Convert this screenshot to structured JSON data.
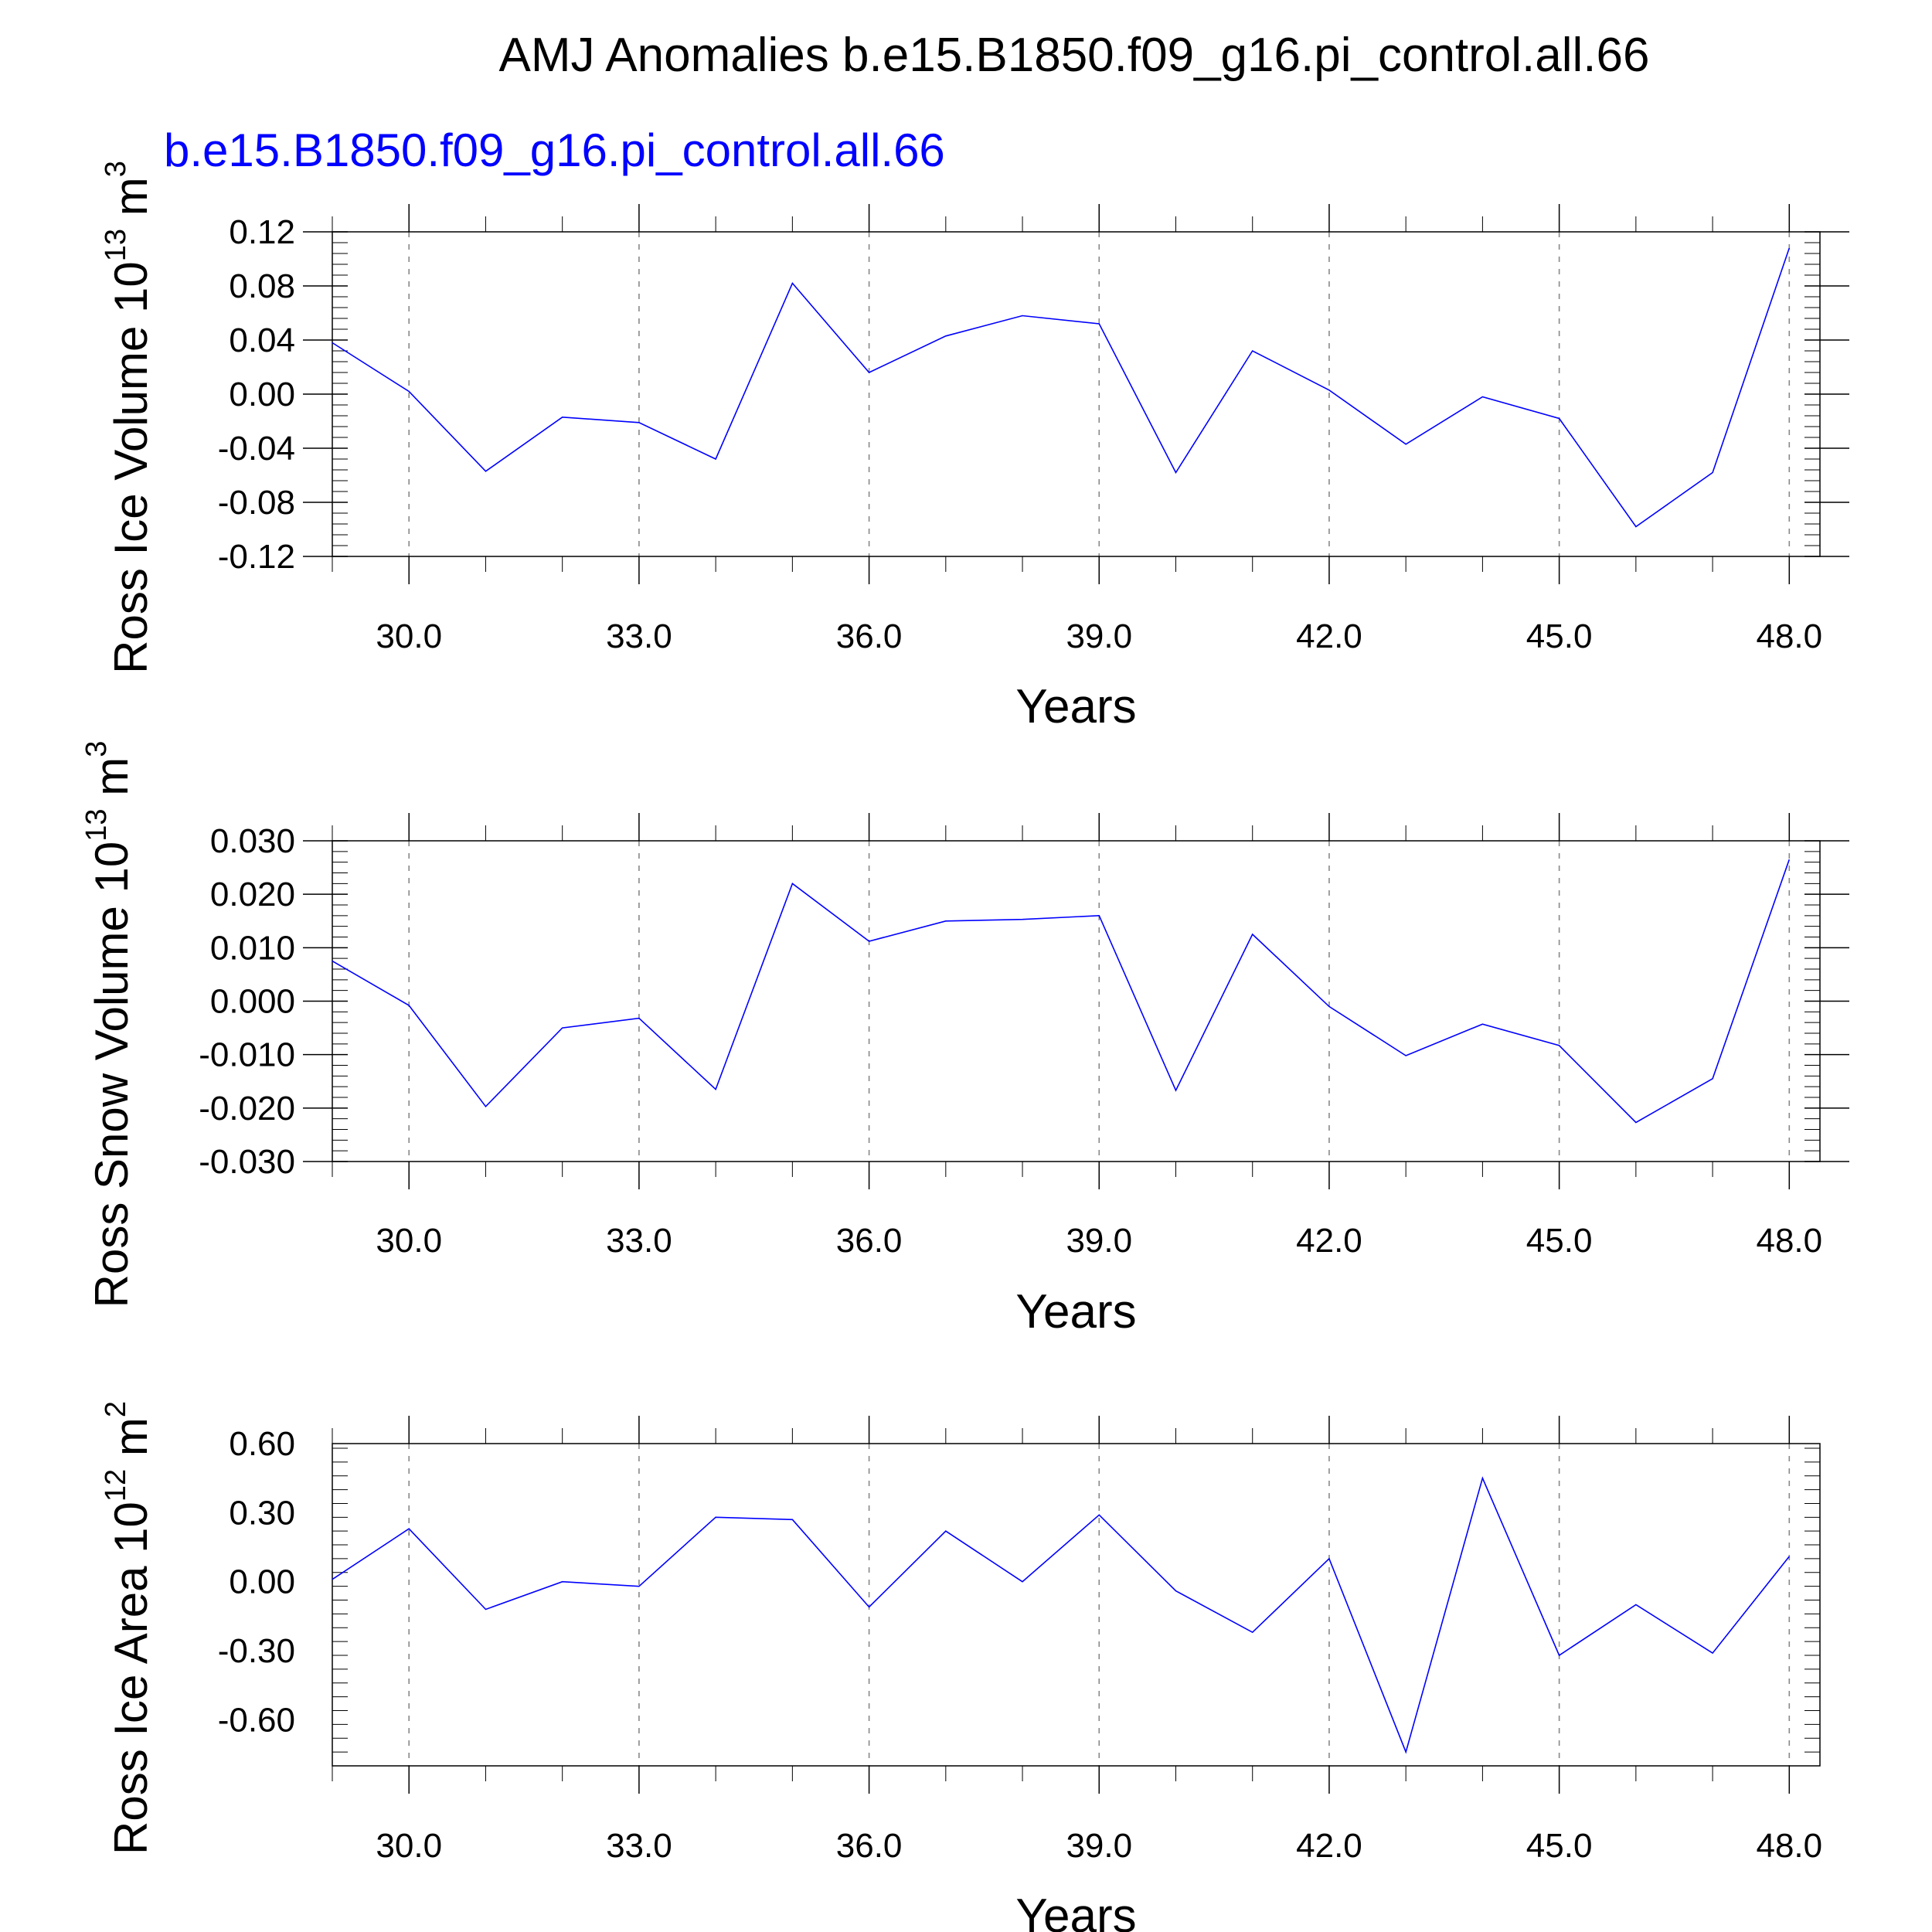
{
  "title": "AMJ Anomalies b.e15.B1850.f09_g16.pi_control.all.66",
  "colors": {
    "series": "#0000ff",
    "subtitle": "#0000ff",
    "grid": "#888888"
  },
  "chart_data": [
    {
      "type": "line",
      "subtitle": "b.e15.B1850.f09_g16.pi_control.all.66",
      "ylabel": "Ross Ice Volume 10",
      "ylabel_exp": "13",
      "ylabel_unit": " m",
      "ylabel_unit_exp": "3",
      "xlabel": "Years",
      "xlim": [
        29,
        48.4
      ],
      "ylim": [
        -0.12,
        0.12
      ],
      "xticks": [
        30,
        33,
        36,
        39,
        42,
        45,
        48
      ],
      "xtick_labels": [
        "30.0",
        "33.0",
        "36.0",
        "39.0",
        "42.0",
        "45.0",
        "48.0"
      ],
      "yticks": [
        -0.12,
        -0.08,
        -0.04,
        0.0,
        0.04,
        0.08,
        0.12
      ],
      "ytick_labels": [
        "-0.12",
        "-0.08",
        "-0.04",
        "0.00",
        "0.04",
        "0.08",
        "0.12"
      ],
      "grid": "vertical-dashed",
      "x": [
        29,
        30,
        31,
        32,
        33,
        34,
        35,
        36,
        37,
        38,
        39,
        40,
        41,
        42,
        43,
        44,
        45,
        46,
        47,
        48
      ],
      "y": [
        0.038,
        0.002,
        -0.057,
        -0.017,
        -0.021,
        -0.048,
        0.082,
        0.016,
        0.043,
        0.058,
        0.052,
        -0.058,
        0.032,
        0.003,
        -0.037,
        -0.002,
        -0.018,
        -0.098,
        -0.058,
        0.108
      ]
    },
    {
      "type": "line",
      "ylabel": "Ross Snow Volume 10",
      "ylabel_exp": "13",
      "ylabel_unit": " m",
      "ylabel_unit_exp": "3",
      "xlabel": "Years",
      "xlim": [
        29,
        48.4
      ],
      "ylim": [
        -0.03,
        0.03
      ],
      "xticks": [
        30,
        33,
        36,
        39,
        42,
        45,
        48
      ],
      "xtick_labels": [
        "30.0",
        "33.0",
        "36.0",
        "39.0",
        "42.0",
        "45.0",
        "48.0"
      ],
      "yticks": [
        -0.03,
        -0.02,
        -0.01,
        0.0,
        0.01,
        0.02,
        0.03
      ],
      "ytick_labels": [
        "-0.030",
        "-0.020",
        "-0.010",
        "0.000",
        "0.010",
        "0.020",
        "0.030"
      ],
      "grid": "vertical-dashed",
      "x": [
        29,
        30,
        31,
        32,
        33,
        34,
        35,
        36,
        37,
        38,
        39,
        40,
        41,
        42,
        43,
        44,
        45,
        46,
        47,
        48
      ],
      "y": [
        0.0075,
        -0.0008,
        -0.0197,
        -0.005,
        -0.0032,
        -0.0165,
        0.022,
        0.0112,
        0.015,
        0.0153,
        0.016,
        -0.0167,
        0.0125,
        -0.001,
        -0.0102,
        -0.0043,
        -0.0083,
        -0.0227,
        -0.0145,
        0.0265
      ]
    },
    {
      "type": "line",
      "ylabel": "Ross Ice Area 10",
      "ylabel_exp": "12",
      "ylabel_unit": " m",
      "ylabel_unit_exp": "2",
      "xlabel": "Years",
      "xlim": [
        29,
        48.4
      ],
      "ylim": [
        -0.8,
        0.6
      ],
      "xticks": [
        30,
        33,
        36,
        39,
        42,
        45,
        48
      ],
      "xtick_labels": [
        "30.0",
        "33.0",
        "36.0",
        "39.0",
        "42.0",
        "45.0",
        "48.0"
      ],
      "yticks": [
        -0.6,
        -0.3,
        0.0,
        0.3,
        0.6
      ],
      "ytick_labels": [
        "-0.60",
        "-0.30",
        "0.00",
        "0.30",
        "0.60"
      ],
      "grid": "vertical-dashed",
      "x": [
        29,
        30,
        31,
        32,
        33,
        34,
        35,
        36,
        37,
        38,
        39,
        40,
        41,
        42,
        43,
        44,
        45,
        46,
        47,
        48
      ],
      "y": [
        0.01,
        0.23,
        -0.12,
        0.0,
        -0.02,
        0.28,
        0.27,
        -0.11,
        0.22,
        0.0,
        0.29,
        -0.04,
        -0.22,
        0.1,
        -0.74,
        0.45,
        -0.32,
        -0.1,
        -0.31,
        0.11
      ]
    }
  ]
}
